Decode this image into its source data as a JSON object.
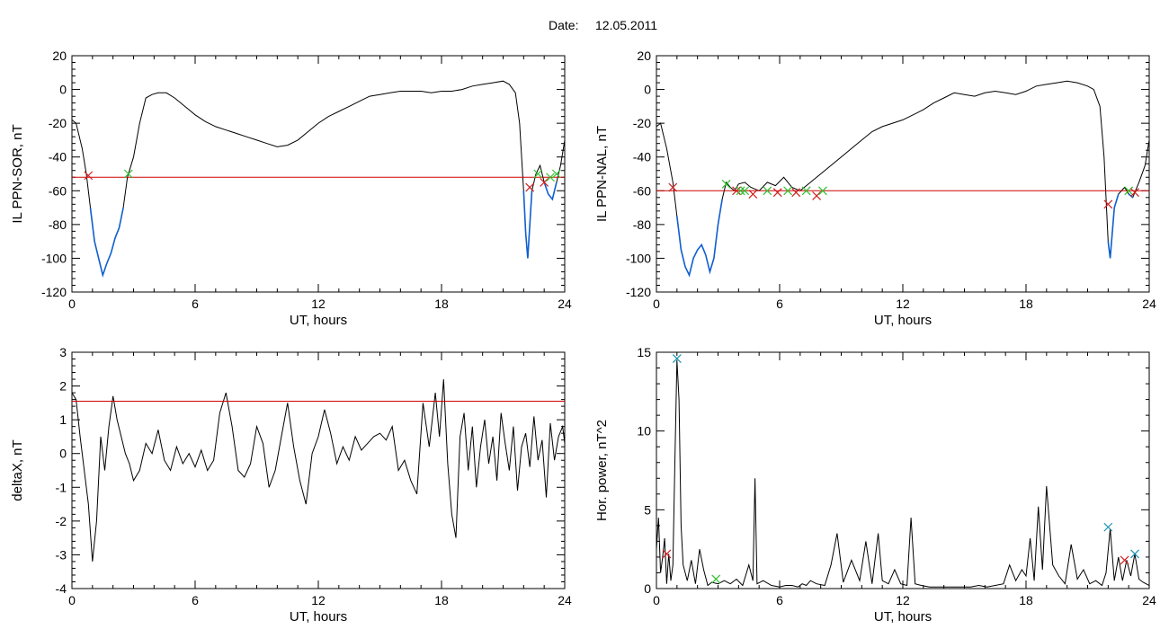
{
  "figure": {
    "date_label": "Date:",
    "date_value": "12.05.2011"
  },
  "colors": {
    "trace": "#000000",
    "threshold": "#d00000",
    "below": "#1060d0",
    "marker_red": "#d02020",
    "marker_green": "#30c030",
    "marker_cyan": "#1890b0"
  },
  "chart_data": [
    {
      "id": "sor",
      "type": "line",
      "xlabel": "UT, hours",
      "ylabel": "IL PPN-SOR, nT",
      "xlim": [
        0,
        24
      ],
      "ylim": [
        -120,
        20
      ],
      "xticks": [
        0,
        6,
        12,
        18,
        24
      ],
      "yticks": [
        -120,
        -100,
        -80,
        -60,
        -40,
        -20,
        0,
        20
      ],
      "threshold": -52,
      "series": [
        {
          "x": [
            0,
            0.2,
            0.5,
            0.7,
            0.9,
            1.1,
            1.3,
            1.5,
            1.7,
            1.9,
            2.1,
            2.3,
            2.5,
            2.7,
            3.0,
            3.3,
            3.6,
            3.9,
            4.2,
            4.6,
            5.0,
            5.5,
            6.0,
            6.5,
            7.0,
            7.5,
            8.0,
            8.5,
            9.0,
            9.5,
            10.0,
            10.5,
            11.0,
            11.5,
            12.0,
            12.5,
            13.0,
            13.5,
            14.0,
            14.5,
            15.0,
            15.5,
            16.0,
            16.5,
            17.0,
            17.5,
            18.0,
            18.5,
            19.0,
            19.5,
            20.0,
            20.5,
            21.0,
            21.3,
            21.6,
            21.8,
            22.0,
            22.1,
            22.2,
            22.3,
            22.4,
            22.6,
            22.8,
            23.0,
            23.2,
            23.4,
            23.6,
            23.8,
            24.0
          ],
          "y": [
            -18,
            -20,
            -35,
            -50,
            -70,
            -90,
            -100,
            -110,
            -103,
            -97,
            -88,
            -82,
            -70,
            -52,
            -40,
            -20,
            -5,
            -3,
            -2,
            -2,
            -5,
            -10,
            -15,
            -19,
            -22,
            -24,
            -26,
            -28,
            -30,
            -32,
            -34,
            -33,
            -30,
            -25,
            -20,
            -16,
            -13,
            -10,
            -7,
            -4,
            -3,
            -2,
            -1,
            -1,
            -1,
            -2,
            -1,
            -1,
            0,
            2,
            3,
            4,
            5,
            3,
            -2,
            -20,
            -60,
            -85,
            -100,
            -80,
            -60,
            -50,
            -45,
            -55,
            -62,
            -65,
            -55,
            -45,
            -30
          ]
        }
      ],
      "markers": [
        {
          "x": 0.8,
          "y": -51,
          "color": "red"
        },
        {
          "x": 2.75,
          "y": -50,
          "color": "green"
        },
        {
          "x": 22.3,
          "y": -58,
          "color": "red"
        },
        {
          "x": 22.7,
          "y": -50,
          "color": "green"
        },
        {
          "x": 23.0,
          "y": -55,
          "color": "red"
        },
        {
          "x": 23.3,
          "y": -52,
          "color": "green"
        },
        {
          "x": 23.6,
          "y": -50,
          "color": "green"
        }
      ]
    },
    {
      "id": "nal",
      "type": "line",
      "xlabel": "UT, hours",
      "ylabel": "IL PPN-NAL, nT",
      "xlim": [
        0,
        24
      ],
      "ylim": [
        -120,
        20
      ],
      "xticks": [
        0,
        6,
        12,
        18,
        24
      ],
      "yticks": [
        -120,
        -100,
        -80,
        -60,
        -40,
        -20,
        0,
        20
      ],
      "threshold": -60,
      "series": [
        {
          "x": [
            0,
            0.2,
            0.5,
            0.8,
            1.0,
            1.2,
            1.4,
            1.6,
            1.8,
            2.0,
            2.2,
            2.4,
            2.6,
            2.8,
            3.0,
            3.2,
            3.4,
            3.6,
            3.8,
            4.0,
            4.3,
            4.6,
            5.0,
            5.4,
            5.8,
            6.2,
            6.6,
            7.0,
            7.5,
            8.0,
            8.5,
            9.0,
            9.5,
            10.0,
            10.5,
            11.0,
            11.5,
            12.0,
            12.5,
            13.0,
            13.5,
            14.0,
            14.5,
            15.0,
            15.5,
            16.0,
            16.5,
            17.0,
            17.5,
            18.0,
            18.5,
            19.0,
            19.5,
            20.0,
            20.5,
            21.0,
            21.3,
            21.6,
            21.8,
            22.0,
            22.1,
            22.2,
            22.3,
            22.5,
            22.8,
            23.0,
            23.2,
            23.5,
            23.8,
            24.0
          ],
          "y": [
            -22,
            -20,
            -35,
            -55,
            -75,
            -95,
            -105,
            -110,
            -100,
            -95,
            -92,
            -98,
            -108,
            -100,
            -80,
            -65,
            -55,
            -58,
            -60,
            -56,
            -55,
            -58,
            -60,
            -55,
            -57,
            -52,
            -58,
            -60,
            -55,
            -50,
            -45,
            -40,
            -35,
            -30,
            -25,
            -22,
            -20,
            -18,
            -15,
            -12,
            -8,
            -5,
            -2,
            -3,
            -4,
            -2,
            -1,
            -2,
            -3,
            -1,
            2,
            3,
            4,
            5,
            4,
            2,
            0,
            -10,
            -40,
            -90,
            -100,
            -85,
            -70,
            -62,
            -58,
            -62,
            -64,
            -55,
            -45,
            -30
          ]
        }
      ],
      "markers": [
        {
          "x": 0.8,
          "y": -58,
          "color": "red"
        },
        {
          "x": 3.4,
          "y": -56,
          "color": "green"
        },
        {
          "x": 3.9,
          "y": -60,
          "color": "red"
        },
        {
          "x": 4.1,
          "y": -60,
          "color": "green"
        },
        {
          "x": 4.3,
          "y": -60,
          "color": "green"
        },
        {
          "x": 4.7,
          "y": -62,
          "color": "red"
        },
        {
          "x": 5.4,
          "y": -60,
          "color": "green"
        },
        {
          "x": 5.9,
          "y": -61,
          "color": "red"
        },
        {
          "x": 6.4,
          "y": -60,
          "color": "green"
        },
        {
          "x": 6.8,
          "y": -61,
          "color": "red"
        },
        {
          "x": 7.3,
          "y": -60,
          "color": "green"
        },
        {
          "x": 7.8,
          "y": -63,
          "color": "red"
        },
        {
          "x": 8.1,
          "y": -60,
          "color": "green"
        },
        {
          "x": 22.0,
          "y": -68,
          "color": "red"
        },
        {
          "x": 23.0,
          "y": -60,
          "color": "green"
        },
        {
          "x": 23.3,
          "y": -61,
          "color": "red"
        }
      ]
    },
    {
      "id": "deltax",
      "type": "line",
      "xlabel": "UT, hours",
      "ylabel": "deltaX, nT",
      "xlim": [
        0,
        24
      ],
      "ylim": [
        -4,
        3
      ],
      "xticks": [
        0,
        6,
        12,
        18,
        24
      ],
      "yticks": [
        -4,
        -3,
        -2,
        -1,
        0,
        1,
        2,
        3
      ],
      "threshold": 1.55,
      "series": [
        {
          "x": [
            0,
            0.2,
            0.4,
            0.6,
            0.8,
            1.0,
            1.2,
            1.4,
            1.6,
            1.8,
            2.0,
            2.2,
            2.4,
            2.6,
            2.8,
            3.0,
            3.3,
            3.6,
            3.9,
            4.2,
            4.5,
            4.8,
            5.1,
            5.4,
            5.7,
            6.0,
            6.3,
            6.6,
            6.9,
            7.2,
            7.5,
            7.8,
            8.1,
            8.4,
            8.7,
            9.0,
            9.3,
            9.6,
            9.9,
            10.2,
            10.5,
            10.8,
            11.1,
            11.4,
            11.7,
            12.0,
            12.3,
            12.6,
            12.9,
            13.2,
            13.5,
            13.8,
            14.1,
            14.4,
            14.7,
            15.0,
            15.3,
            15.6,
            15.9,
            16.2,
            16.5,
            16.8,
            17.1,
            17.4,
            17.7,
            17.9,
            18.1,
            18.3,
            18.5,
            18.7,
            18.9,
            19.1,
            19.3,
            19.5,
            19.7,
            19.9,
            20.1,
            20.3,
            20.5,
            20.7,
            20.9,
            21.1,
            21.3,
            21.5,
            21.7,
            21.9,
            22.1,
            22.3,
            22.5,
            22.7,
            22.9,
            23.1,
            23.3,
            23.5,
            23.7,
            23.9,
            24.0
          ],
          "y": [
            1.8,
            1.6,
            0.5,
            -0.5,
            -1.5,
            -3.2,
            -2.0,
            0.5,
            -0.5,
            0.8,
            1.7,
            1.0,
            0.5,
            0.0,
            -0.3,
            -0.8,
            -0.5,
            0.3,
            0.0,
            0.7,
            -0.2,
            -0.5,
            0.2,
            -0.3,
            0.0,
            -0.4,
            0.1,
            -0.5,
            -0.2,
            1.2,
            1.8,
            0.8,
            -0.5,
            -0.7,
            -0.3,
            0.8,
            0.3,
            -1.0,
            -0.5,
            0.5,
            1.5,
            0.2,
            -0.8,
            -1.5,
            0.0,
            0.5,
            1.3,
            0.6,
            -0.3,
            0.2,
            -0.2,
            0.5,
            0.1,
            0.3,
            0.5,
            0.6,
            0.4,
            0.8,
            -0.5,
            -0.2,
            -0.8,
            -1.2,
            1.5,
            0.2,
            1.8,
            0.5,
            2.2,
            -0.3,
            -1.8,
            -2.5,
            0.5,
            1.2,
            -0.5,
            0.8,
            -1.0,
            0.2,
            1.0,
            -0.3,
            0.5,
            -0.8,
            1.2,
            0.3,
            -0.5,
            0.8,
            -1.1,
            0.2,
            0.6,
            -0.4,
            1.1,
            -0.2,
            0.4,
            -1.3,
            0.9,
            -0.2,
            0.5,
            0.8,
            0.3
          ]
        }
      ]
    },
    {
      "id": "power",
      "type": "line",
      "xlabel": "UT, hours",
      "ylabel": "Hor. power, nT^2",
      "xlim": [
        0,
        24
      ],
      "ylim": [
        0,
        15
      ],
      "xticks": [
        0,
        6,
        12,
        18,
        24
      ],
      "yticks": [
        0,
        5,
        10,
        15
      ],
      "series": [
        {
          "x": [
            0,
            0.1,
            0.2,
            0.3,
            0.4,
            0.5,
            0.6,
            0.7,
            0.8,
            0.9,
            1.0,
            1.1,
            1.2,
            1.3,
            1.5,
            1.7,
            1.9,
            2.1,
            2.3,
            2.5,
            2.7,
            3.0,
            3.3,
            3.6,
            3.9,
            4.2,
            4.5,
            4.7,
            4.8,
            4.9,
            5.2,
            5.6,
            6.0,
            6.3,
            6.6,
            6.9,
            7.1,
            7.3,
            7.5,
            7.8,
            8.2,
            8.5,
            8.8,
            9.1,
            9.5,
            9.9,
            10.2,
            10.5,
            10.8,
            11.0,
            11.3,
            11.6,
            11.9,
            12.2,
            12.4,
            12.6,
            12.9,
            13.3,
            13.7,
            14.1,
            14.5,
            14.9,
            15.3,
            15.7,
            16.1,
            16.5,
            16.9,
            17.2,
            17.5,
            17.8,
            18.0,
            18.2,
            18.4,
            18.6,
            18.8,
            19.0,
            19.3,
            19.6,
            19.9,
            20.2,
            20.5,
            20.8,
            21.1,
            21.4,
            21.7,
            21.9,
            22.1,
            22.3,
            22.5,
            22.7,
            22.9,
            23.1,
            23.3,
            23.5,
            23.7,
            24.0
          ],
          "y": [
            2.5,
            4.5,
            1.0,
            2.0,
            3.2,
            0.3,
            2.2,
            0.5,
            1.5,
            8.0,
            14.5,
            12.0,
            4.0,
            1.5,
            0.5,
            1.8,
            0.3,
            2.5,
            1.2,
            0.2,
            0.4,
            0.3,
            0.5,
            0.3,
            0.6,
            0.2,
            1.5,
            0.5,
            7.0,
            0.3,
            0.5,
            0.2,
            0.1,
            0.2,
            0.2,
            0.1,
            0.3,
            0.2,
            0.5,
            0.3,
            0.2,
            1.5,
            3.5,
            0.4,
            1.8,
            0.5,
            3.0,
            0.3,
            3.5,
            0.5,
            0.3,
            1.2,
            0.3,
            0.2,
            4.5,
            0.3,
            0.2,
            0.1,
            0.1,
            0.1,
            0.1,
            0.1,
            0.1,
            0.2,
            0.1,
            0.2,
            0.3,
            1.5,
            0.5,
            1.2,
            0.8,
            3.2,
            0.5,
            5.2,
            1.2,
            6.5,
            1.5,
            0.8,
            0.3,
            2.8,
            0.6,
            1.2,
            0.3,
            0.5,
            0.2,
            1.0,
            3.8,
            0.5,
            2.0,
            0.5,
            1.8,
            0.8,
            2.2,
            0.6,
            0.4,
            0.2
          ]
        }
      ],
      "markers": [
        {
          "x": 0.5,
          "y": 2.2,
          "color": "red"
        },
        {
          "x": 1.0,
          "y": 14.6,
          "color": "cyan"
        },
        {
          "x": 2.9,
          "y": 0.6,
          "color": "green"
        },
        {
          "x": 22.0,
          "y": 3.9,
          "color": "cyan"
        },
        {
          "x": 22.8,
          "y": 1.8,
          "color": "red"
        },
        {
          "x": 23.3,
          "y": 2.2,
          "color": "cyan"
        }
      ]
    }
  ]
}
